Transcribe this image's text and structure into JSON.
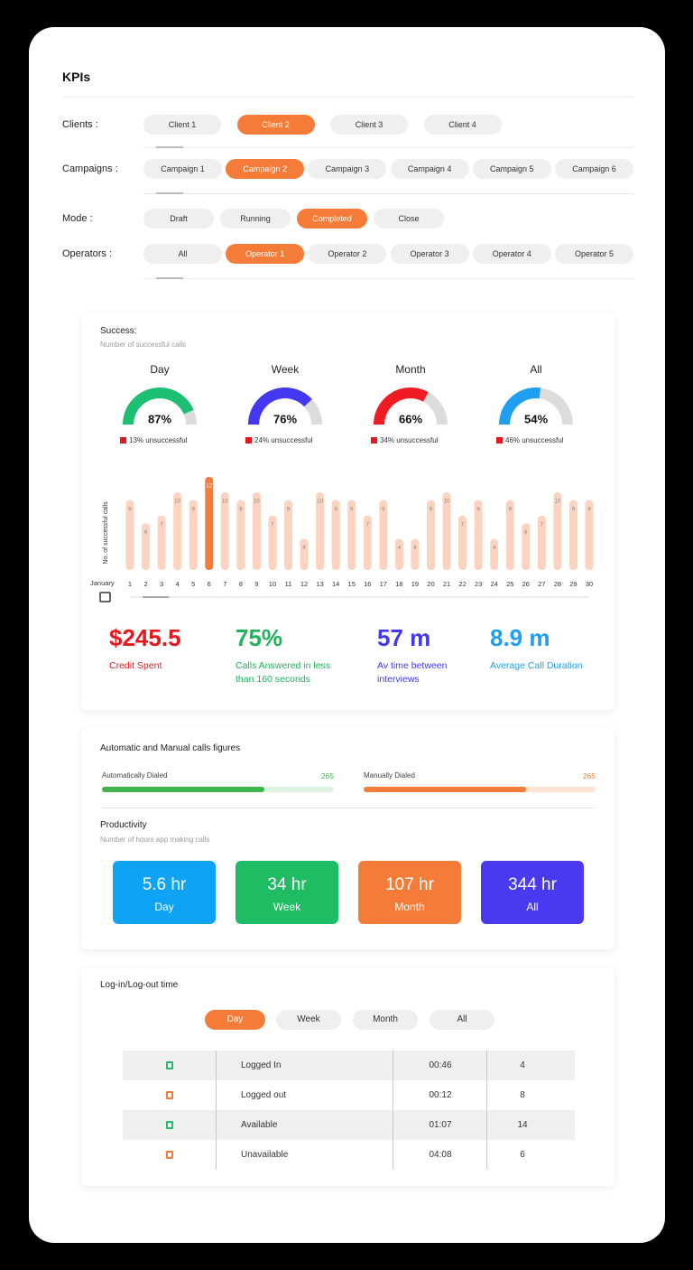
{
  "header": {
    "title": "KPIs"
  },
  "filters": [
    {
      "label": "Clients :",
      "options": [
        "Client 1",
        "Client 2",
        "Client 3",
        "Client 4"
      ],
      "selected": 1
    },
    {
      "label": "Campaigns :",
      "options": [
        "Campaign 1",
        "Campaign 2",
        "Campaign 3",
        "Campaign 4",
        "Campaign 5",
        "Campaign 6"
      ],
      "selected": 1
    },
    {
      "label": "Mode :",
      "options": [
        "Draft",
        "Running",
        "Completed",
        "Close"
      ],
      "selected": 2
    },
    {
      "label": "Operators :",
      "options": [
        "All",
        "Operator 1",
        "Operator 2",
        "Operator 3",
        "Operator 4",
        "Operator 5"
      ],
      "selected": 1
    }
  ],
  "success": {
    "title": "Success:",
    "subtitle": "Number of successful calls",
    "note_color": "#e8171e",
    "gauges": [
      {
        "label": "Day",
        "value": 87,
        "value_label": "87%",
        "note": "13% unsuccessful",
        "color": "#1dbf73"
      },
      {
        "label": "Week",
        "value": 76,
        "value_label": "76%",
        "note": "24% unsuccessful",
        "color": "#4338f0"
      },
      {
        "label": "Month",
        "value": 66,
        "value_label": "66%",
        "note": "34% unsuccessful",
        "color": "#ef1c24"
      },
      {
        "label": "All",
        "value": 54,
        "value_label": "54%",
        "note": "46% unsuccessful",
        "color": "#1e9ff2"
      }
    ]
  },
  "chart_data": {
    "type": "bar",
    "y_label": "No. of successful calls",
    "x_label": "January",
    "categories": [
      "1",
      "2",
      "3",
      "4",
      "5",
      "6",
      "7",
      "8",
      "9",
      "10",
      "11",
      "12",
      "13",
      "14",
      "15",
      "16",
      "17",
      "18",
      "19",
      "20",
      "21",
      "22",
      "23",
      "24",
      "25",
      "26",
      "27",
      "28",
      "29",
      "30"
    ],
    "values": [
      9,
      6,
      7,
      10,
      9,
      12,
      10,
      9,
      10,
      7,
      9,
      4,
      10,
      9,
      9,
      7,
      9,
      4,
      4,
      9,
      10,
      7,
      9,
      4,
      9,
      6,
      7,
      10,
      9,
      9
    ],
    "ylim": [
      0,
      12
    ],
    "color": "#fcd3bf",
    "highlight_color": "#f57c38",
    "highlight_index": 5
  },
  "stats": [
    {
      "value": "$245.5",
      "label": "Credit Spent",
      "color": "#e8171e"
    },
    {
      "value": "75%",
      "label": "Calls Answered in less than 160 seconds",
      "color": "#1fb35a"
    },
    {
      "value": "57 m",
      "label": "Av time between interviews",
      "color": "#4338f0"
    },
    {
      "value": "8.9 m",
      "label": "Average Call Duration",
      "color": "#1e9ff2"
    }
  ],
  "calls_figures": {
    "title": "Automatic and Manual calls figures",
    "items": [
      {
        "label": "Automatically Dialed",
        "value": 265,
        "fill_percent": 70,
        "color": "#3cb54a",
        "track_color": "#dcf3df"
      },
      {
        "label": "Manually Dialed",
        "value": 265,
        "fill_percent": 70,
        "color": "#f57c38",
        "track_color": "#fde3d6"
      }
    ]
  },
  "productivity": {
    "title": "Productivity",
    "subtitle": "Number of hours app making calls",
    "cards": [
      {
        "value": "5.6 hr",
        "label": "Day",
        "color": "#0fa3f5"
      },
      {
        "value": "34 hr",
        "label": "Week",
        "color": "#1ebd63"
      },
      {
        "value": "107 hr",
        "label": "Month",
        "color": "#f57c38"
      },
      {
        "value": "344 hr",
        "label": "All",
        "color": "#4a3aef"
      }
    ]
  },
  "login_time": {
    "title": "Log-in/Log-out time",
    "tabs": [
      "Day",
      "Week",
      "Month",
      "All"
    ],
    "selected": 0,
    "rows": [
      {
        "status": "Logged In",
        "time": "00:46",
        "count": 4,
        "color": "#2bb673"
      },
      {
        "status": "Logged out",
        "time": "00:12",
        "count": 8,
        "color": "#f57c38"
      },
      {
        "status": "Available",
        "time": "01:07",
        "count": 14,
        "color": "#2bb673"
      },
      {
        "status": "Unavailable",
        "time": "04:08",
        "count": 6,
        "color": "#f57c38"
      }
    ]
  }
}
